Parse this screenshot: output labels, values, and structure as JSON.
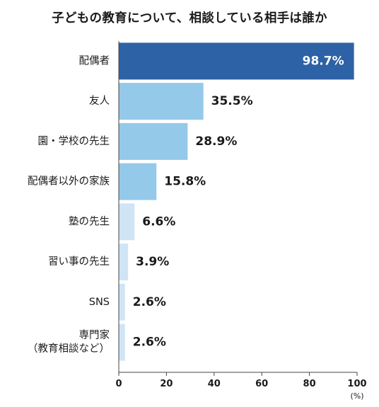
{
  "chart_data": {
    "type": "bar",
    "orientation": "horizontal",
    "title": "子どもの教育について、相談している相手は誰か",
    "categories": [
      [
        "配偶者"
      ],
      [
        "友人"
      ],
      [
        "園・学校の先生"
      ],
      [
        "配偶者以外の家族"
      ],
      [
        "塾の先生"
      ],
      [
        "習い事の先生"
      ],
      [
        "SNS"
      ],
      [
        "専門家",
        "（教育相談など）"
      ]
    ],
    "values": [
      98.7,
      35.5,
      28.9,
      15.8,
      6.6,
      3.9,
      2.6,
      2.6
    ],
    "value_labels": [
      "98.7%",
      "35.5%",
      "28.9%",
      "15.8%",
      "6.6%",
      "3.9%",
      "2.6%",
      "2.6%"
    ],
    "bar_colors": [
      "#2e62a6",
      "#94c9ea",
      "#94c9ea",
      "#94c9ea",
      "#cfe5f6",
      "#cfe5f6",
      "#cfe5f6",
      "#cfe5f6"
    ],
    "xlim": [
      0,
      100
    ],
    "xticks": [
      0,
      20,
      40,
      60,
      80,
      100
    ],
    "x_unit": "(%)",
    "grid": false
  }
}
